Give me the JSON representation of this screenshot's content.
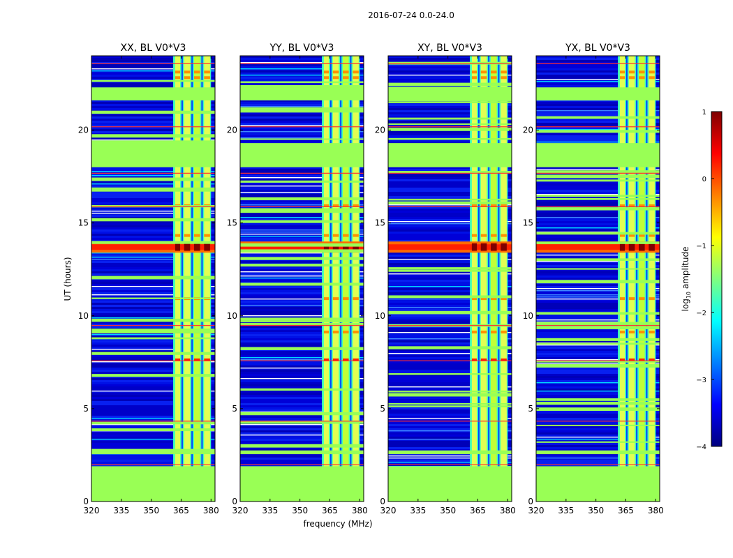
{
  "chart_data": {
    "type": "heatmap",
    "title": "2016-07-24 0.0-24.0",
    "xlabel": "frequency (MHz)",
    "ylabel": "UT (hours)",
    "xlim": [
      320,
      382
    ],
    "ylim": [
      0,
      24
    ],
    "xticks": [
      "320",
      "335",
      "350",
      "365",
      "380"
    ],
    "yticks": [
      "0",
      "5",
      "10",
      "15",
      "20"
    ],
    "colorbar": {
      "label": "log10 amplitude",
      "label_main": "log",
      "label_sub": "10",
      "label_tail": " amplitude",
      "range": [
        -4,
        1
      ],
      "ticks": [
        "1",
        "0",
        "−1",
        "−2",
        "−3",
        "−4"
      ],
      "colormap": "jet"
    },
    "panels": [
      {
        "title": "XX, BL V0*V3",
        "pol": "XX"
      },
      {
        "title": "YY, BL V0*V3",
        "pol": "YY"
      },
      {
        "title": "XY, BL V0*V3",
        "pol": "XY"
      },
      {
        "title": "YX, BL V0*V3",
        "pol": "YX"
      }
    ],
    "flagged_hours": [
      [
        0,
        1.9
      ],
      [
        2.55,
        2.75
      ],
      [
        18.0,
        19.3
      ],
      [
        21.6,
        22.3
      ]
    ],
    "bright_band_hours": [
      13.4,
      14.0
    ],
    "high_freq_block_mhz": [
      361,
      380
    ]
  }
}
